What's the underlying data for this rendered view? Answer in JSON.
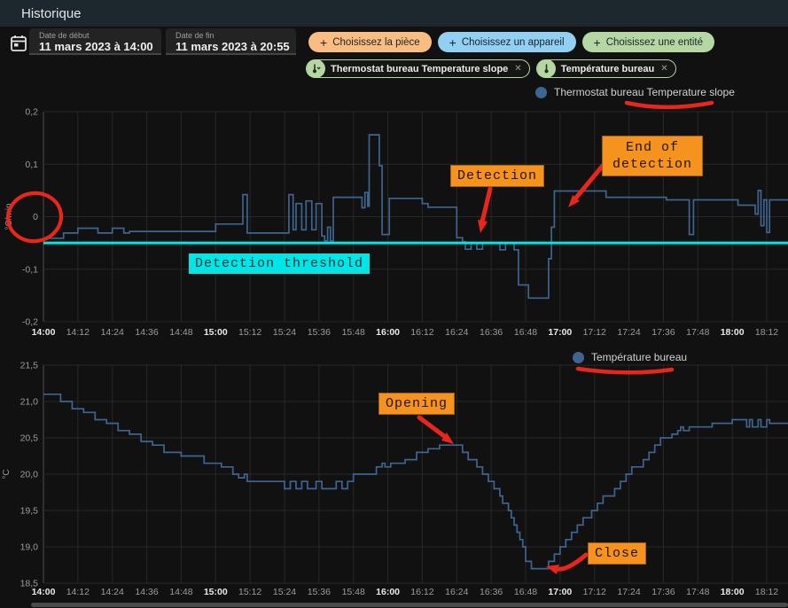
{
  "header": {
    "title": "Historique"
  },
  "toolbar": {
    "start_date": {
      "label": "Date de début",
      "value": "11 mars 2023 à 14:00"
    },
    "end_date": {
      "label": "Date de fin",
      "value": "11 mars 2023 à 20:55"
    },
    "filter_chips": [
      {
        "label": "Choisissez la pièce",
        "bg": "#f9bd82"
      },
      {
        "label": "Choisissez un appareil",
        "bg": "#91cff3"
      },
      {
        "label": "Choisissez une entité",
        "bg": "#b5d7a4"
      }
    ],
    "entity_chips": [
      {
        "label": "Thermostat bureau Temperature slope",
        "icon": "thermometer-chevron-down-icon",
        "close": "✕"
      },
      {
        "label": "Température bureau",
        "icon": "thermometer-icon",
        "close": "✕"
      }
    ]
  },
  "annotation_style": {
    "orange": "#f6931e",
    "cyan": "#00e6e6",
    "red": "#e8261b"
  },
  "chart_data": [
    {
      "type": "line",
      "step": true,
      "legend": "Thermostat bureau Temperature slope",
      "ylabel": "°C/min",
      "ylim": [
        -0.2,
        0.2
      ],
      "grid": true,
      "legend_position": "top-right",
      "series_color": "#3d6590",
      "y_ticks": {
        "values": [
          0.2,
          0.1,
          0,
          -0.1,
          -0.2
        ],
        "labels": [
          "0,2",
          "0,1",
          "0",
          "-0,1",
          "-0,2"
        ]
      },
      "x_tick_interval_min": 12,
      "x_tick_labels": [
        "14:00",
        "14:12",
        "14:24",
        "14:36",
        "14:48",
        "15:00",
        "15:12",
        "15:24",
        "15:36",
        "15:48",
        "16:00",
        "16:12",
        "16:24",
        "16:36",
        "16:48",
        "17:00",
        "17:12",
        "17:24",
        "17:36",
        "17:48",
        "18:00",
        "18:12"
      ],
      "threshold": {
        "value": -0.05,
        "color": "#00e6e6"
      },
      "points": [
        [
          0,
          -0.041
        ],
        [
          7,
          -0.031
        ],
        [
          12,
          -0.022
        ],
        [
          19,
          -0.031
        ],
        [
          24,
          -0.022
        ],
        [
          28,
          -0.031
        ],
        [
          30,
          -0.028
        ],
        [
          59,
          -0.028
        ],
        [
          60,
          -0.014
        ],
        [
          69,
          -0.014
        ],
        [
          69.5,
          0.042
        ],
        [
          71,
          -0.031
        ],
        [
          85,
          -0.031
        ],
        [
          85.5,
          0.042
        ],
        [
          87,
          -0.025
        ],
        [
          88,
          0.025
        ],
        [
          90,
          -0.025
        ],
        [
          91.5,
          0.03
        ],
        [
          93.5,
          -0.025
        ],
        [
          95,
          0.025
        ],
        [
          97,
          -0.037
        ],
        [
          98,
          -0.046
        ],
        [
          99,
          -0.02
        ],
        [
          100,
          -0.046
        ],
        [
          101,
          0.037
        ],
        [
          110,
          0.037
        ],
        [
          111,
          0.017
        ],
        [
          112,
          0.046
        ],
        [
          113,
          0.02
        ],
        [
          113.5,
          0.156
        ],
        [
          117,
          0.097
        ],
        [
          118,
          -0.034
        ],
        [
          120,
          -0.034
        ],
        [
          120.5,
          0.035
        ],
        [
          131,
          0.035
        ],
        [
          132,
          0.025
        ],
        [
          134,
          0.018
        ],
        [
          143,
          0.018
        ],
        [
          144,
          -0.04
        ],
        [
          146,
          -0.048
        ],
        [
          147,
          -0.062
        ],
        [
          149,
          -0.05
        ],
        [
          151,
          -0.062
        ],
        [
          153,
          -0.05
        ],
        [
          158,
          -0.05
        ],
        [
          159,
          -0.063
        ],
        [
          161,
          -0.05
        ],
        [
          164,
          -0.063
        ],
        [
          165.5,
          -0.13
        ],
        [
          168,
          -0.13
        ],
        [
          169,
          -0.155
        ],
        [
          175,
          -0.155
        ],
        [
          176,
          -0.08
        ],
        [
          177,
          -0.02
        ],
        [
          178,
          0.049
        ],
        [
          196,
          0.037
        ],
        [
          217,
          0.032
        ],
        [
          225,
          -0.034
        ],
        [
          226.5,
          0.032
        ],
        [
          242,
          0.022
        ],
        [
          248,
          0.005
        ],
        [
          249,
          0.05
        ],
        [
          250,
          -0.017
        ],
        [
          251,
          0.032
        ],
        [
          252,
          -0.03
        ],
        [
          253,
          0.032
        ],
        [
          259,
          0.032
        ]
      ],
      "annotations": {
        "detection": "Detection",
        "end_of_detection": "End of detection",
        "threshold_label": "Detection threshold"
      }
    },
    {
      "type": "line",
      "step": true,
      "legend": "Température bureau",
      "ylabel": "°C",
      "ylim": [
        18.5,
        21.5
      ],
      "grid": true,
      "legend_position": "top-right",
      "series_color": "#3d6590",
      "y_ticks": {
        "values": [
          21.5,
          21.0,
          20.5,
          20.0,
          19.5,
          19.0,
          18.5
        ],
        "labels": [
          "21,5",
          "21,0",
          "20,5",
          "20,0",
          "19,5",
          "19,0",
          "18,5"
        ]
      },
      "x_tick_interval_min": 12,
      "x_tick_labels": [
        "14:00",
        "14:12",
        "14:24",
        "14:36",
        "14:48",
        "15:00",
        "15:12",
        "15:24",
        "15:36",
        "15:48",
        "16:00",
        "16:12",
        "16:24",
        "16:36",
        "16:48",
        "17:00",
        "17:12",
        "17:24",
        "17:36",
        "17:48",
        "18:00",
        "18:12"
      ],
      "points": [
        [
          0,
          21.1
        ],
        [
          6,
          21.0
        ],
        [
          10,
          20.9
        ],
        [
          14,
          20.85
        ],
        [
          18,
          20.75
        ],
        [
          22,
          20.7
        ],
        [
          26,
          20.6
        ],
        [
          30,
          20.55
        ],
        [
          34,
          20.45
        ],
        [
          38,
          20.4
        ],
        [
          42,
          20.3
        ],
        [
          48,
          20.25
        ],
        [
          56,
          20.15
        ],
        [
          62,
          20.1
        ],
        [
          66,
          20.0
        ],
        [
          68,
          19.95
        ],
        [
          70,
          20.0
        ],
        [
          71,
          19.9
        ],
        [
          82,
          19.9
        ],
        [
          84,
          19.8
        ],
        [
          86,
          19.9
        ],
        [
          88,
          19.8
        ],
        [
          90,
          19.9
        ],
        [
          92,
          19.8
        ],
        [
          95,
          19.9
        ],
        [
          97,
          19.8
        ],
        [
          102,
          19.9
        ],
        [
          104,
          19.8
        ],
        [
          106,
          19.9
        ],
        [
          108,
          20.0
        ],
        [
          116,
          20.1
        ],
        [
          118,
          20.15
        ],
        [
          119,
          20.1
        ],
        [
          121,
          20.15
        ],
        [
          126,
          20.2
        ],
        [
          130,
          20.3
        ],
        [
          134,
          20.35
        ],
        [
          138,
          20.4
        ],
        [
          146,
          20.3
        ],
        [
          148,
          20.2
        ],
        [
          151,
          20.1
        ],
        [
          153,
          20.0
        ],
        [
          155,
          19.9
        ],
        [
          157,
          19.8
        ],
        [
          159,
          19.7
        ],
        [
          160,
          19.6
        ],
        [
          162,
          19.5
        ],
        [
          163,
          19.4
        ],
        [
          164,
          19.3
        ],
        [
          165,
          19.2
        ],
        [
          166,
          19.1
        ],
        [
          167,
          19.0
        ],
        [
          168,
          18.8
        ],
        [
          170,
          18.7
        ],
        [
          175,
          18.7
        ],
        [
          176,
          18.8
        ],
        [
          178,
          18.9
        ],
        [
          180,
          19.0
        ],
        [
          182,
          19.1
        ],
        [
          184,
          19.2
        ],
        [
          186,
          19.3
        ],
        [
          188,
          19.4
        ],
        [
          191,
          19.5
        ],
        [
          193,
          19.6
        ],
        [
          195,
          19.7
        ],
        [
          199,
          19.8
        ],
        [
          201,
          19.9
        ],
        [
          203,
          20.0
        ],
        [
          205,
          20.1
        ],
        [
          209,
          20.2
        ],
        [
          211,
          20.3
        ],
        [
          213,
          20.4
        ],
        [
          215,
          20.5
        ],
        [
          219,
          20.55
        ],
        [
          221,
          20.6
        ],
        [
          222,
          20.65
        ],
        [
          223,
          20.6
        ],
        [
          225,
          20.65
        ],
        [
          233,
          20.7
        ],
        [
          240,
          20.75
        ],
        [
          245,
          20.65
        ],
        [
          246,
          20.75
        ],
        [
          247,
          20.65
        ],
        [
          249,
          20.75
        ],
        [
          250,
          20.65
        ],
        [
          252,
          20.75
        ],
        [
          253,
          20.7
        ],
        [
          259,
          20.7
        ]
      ],
      "annotations": {
        "opening": "Opening",
        "close": "Close"
      }
    }
  ]
}
